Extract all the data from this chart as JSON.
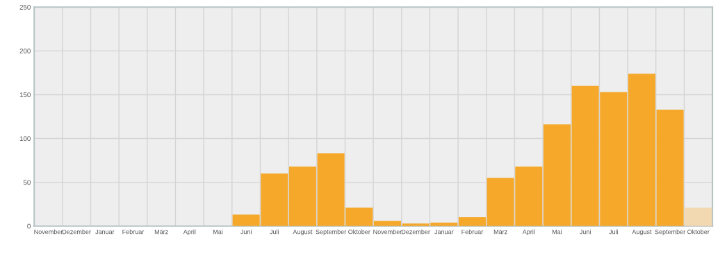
{
  "chart_data": {
    "type": "bar",
    "categories": [
      "November",
      "Dezember",
      "Januar",
      "Februar",
      "März",
      "April",
      "Mai",
      "Juni",
      "Juli",
      "August",
      "September",
      "Oktober",
      "November",
      "Dezember",
      "Januar",
      "Februar",
      "März",
      "April",
      "Mai",
      "Juni",
      "Juli",
      "August",
      "September",
      "Oktober"
    ],
    "values": [
      0,
      0,
      0,
      0,
      0,
      0,
      0,
      13,
      60,
      68,
      83,
      21,
      6,
      3,
      4,
      10,
      55,
      68,
      116,
      160,
      153,
      174,
      133,
      21
    ],
    "colors": [
      "#f5a82a",
      "#f5a82a",
      "#f5a82a",
      "#f5a82a",
      "#f5a82a",
      "#f5a82a",
      "#f5a82a",
      "#f5a82a",
      "#f5a82a",
      "#f5a82a",
      "#f5a82a",
      "#f5a82a",
      "#f5a82a",
      "#f5a82a",
      "#f5a82a",
      "#f5a82a",
      "#f5a82a",
      "#f5a82a",
      "#f5a82a",
      "#f5a82a",
      "#f5a82a",
      "#f5a82a",
      "#f5a82a",
      "#f3d9b1"
    ],
    "ylim": [
      0,
      250
    ],
    "yticks": [
      0,
      50,
      100,
      150,
      200,
      250
    ],
    "grid": true
  }
}
